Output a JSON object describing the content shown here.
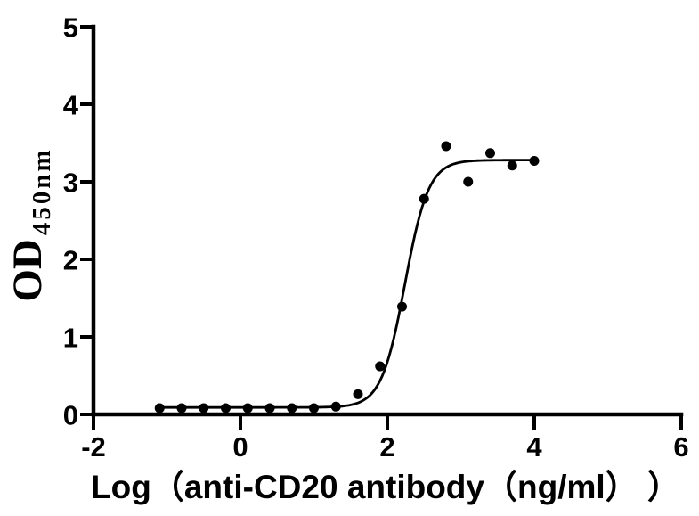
{
  "chart_data": {
    "type": "scatter",
    "xlabel": "Log（anti-CD20 antibody（ng/ml） ）",
    "ylabel": "OD",
    "ylabel_subscript": "450nm",
    "xlim": [
      -2,
      6
    ],
    "ylim": [
      0,
      5
    ],
    "x_ticks": [
      -2,
      0,
      2,
      4,
      6
    ],
    "y_ticks": [
      0,
      1,
      2,
      3,
      4,
      5
    ],
    "grid": false,
    "legend_position": "none",
    "points": {
      "log_conc": [
        -1.1,
        -0.8,
        -0.5,
        -0.2,
        0.1,
        0.4,
        0.7,
        1.0,
        1.3,
        1.6,
        1.9,
        2.2,
        2.5,
        2.8,
        3.1,
        3.4,
        3.7,
        4.0
      ],
      "od450": [
        0.08,
        0.08,
        0.08,
        0.08,
        0.08,
        0.08,
        0.08,
        0.08,
        0.1,
        0.26,
        0.62,
        1.39,
        2.78,
        3.46,
        3.0,
        3.37,
        3.21,
        3.27
      ]
    },
    "fit_curve": {
      "model": "4PL-sigmoidal",
      "bottom": 0.09,
      "top": 3.28,
      "log_ec50": 2.24,
      "hill_slope": 2.7,
      "x_start": -1.1,
      "x_end": 4.0
    },
    "colors": {
      "background": "#ffffff",
      "axis": "#000000",
      "points": "#000000",
      "curve": "#000000",
      "text": "#000000"
    }
  }
}
